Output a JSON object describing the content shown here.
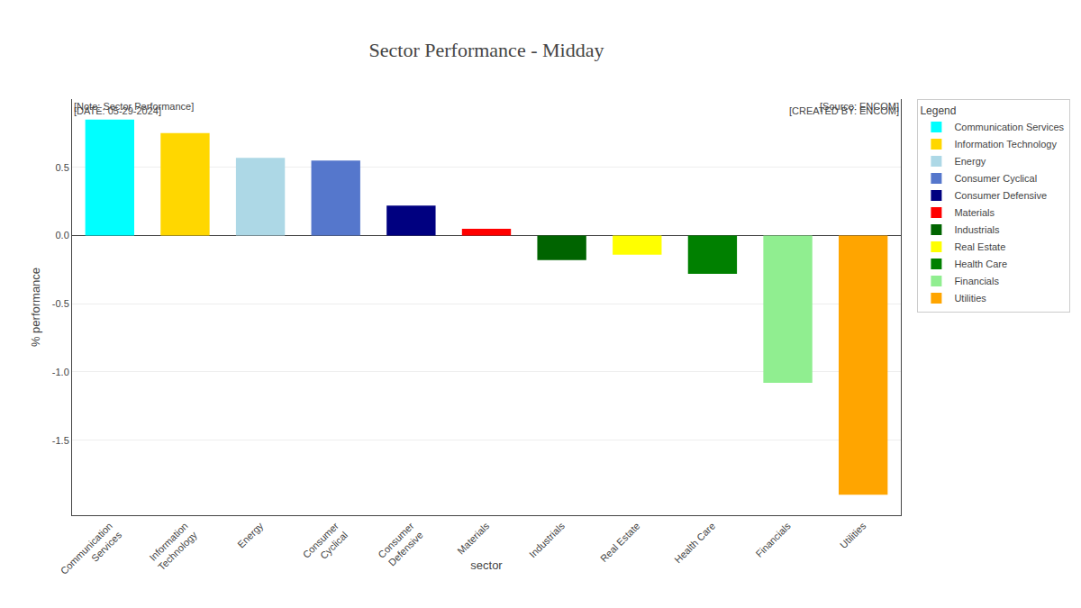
{
  "chart_data": {
    "type": "bar",
    "title": "Sector Performance - Midday",
    "annotations": {
      "note": "[Note: Sector Performance]",
      "date": "[DATE: 05-29-2024]",
      "source": "[Source: ENCOM]",
      "created_by": "[CREATED BY: ENCOM]"
    },
    "xlabel": "sector",
    "ylabel": "% performance",
    "categories": [
      "Communication\nServices",
      "Information\nTechnology",
      "Energy",
      "Consumer\nCyclical",
      "Consumer\nDefensive",
      "Materials",
      "Industrials",
      "Real Estate",
      "Health Care",
      "Financials",
      "Utilities"
    ],
    "values": [
      0.85,
      0.75,
      0.57,
      0.55,
      0.22,
      0.05,
      -0.18,
      -0.14,
      -0.28,
      -1.08,
      -1.9
    ],
    "colors": [
      "#00FFFF",
      "#FFD700",
      "#ADD8E6",
      "#5577CC",
      "#000080",
      "#FF0000",
      "#006400",
      "#FFFF00",
      "#008000",
      "#90EE90",
      "#FFA500"
    ],
    "legend_title": "Legend",
    "legend_labels": [
      "Communication Services",
      "Information Technology",
      "Energy",
      "Consumer Cyclical",
      "Consumer Defensive",
      "Materials",
      "Industrials",
      "Real Estate",
      "Health Care",
      "Financials",
      "Utilities"
    ],
    "legend": "right",
    "ylim": [
      -2.05,
      1.0
    ],
    "yticks": [
      0.5,
      {
        "value": 0,
        "label": "0.0"
      },
      -0.5,
      {
        "value": -1,
        "label": "-1.0"
      },
      -1.5
    ],
    "grid": true
  }
}
